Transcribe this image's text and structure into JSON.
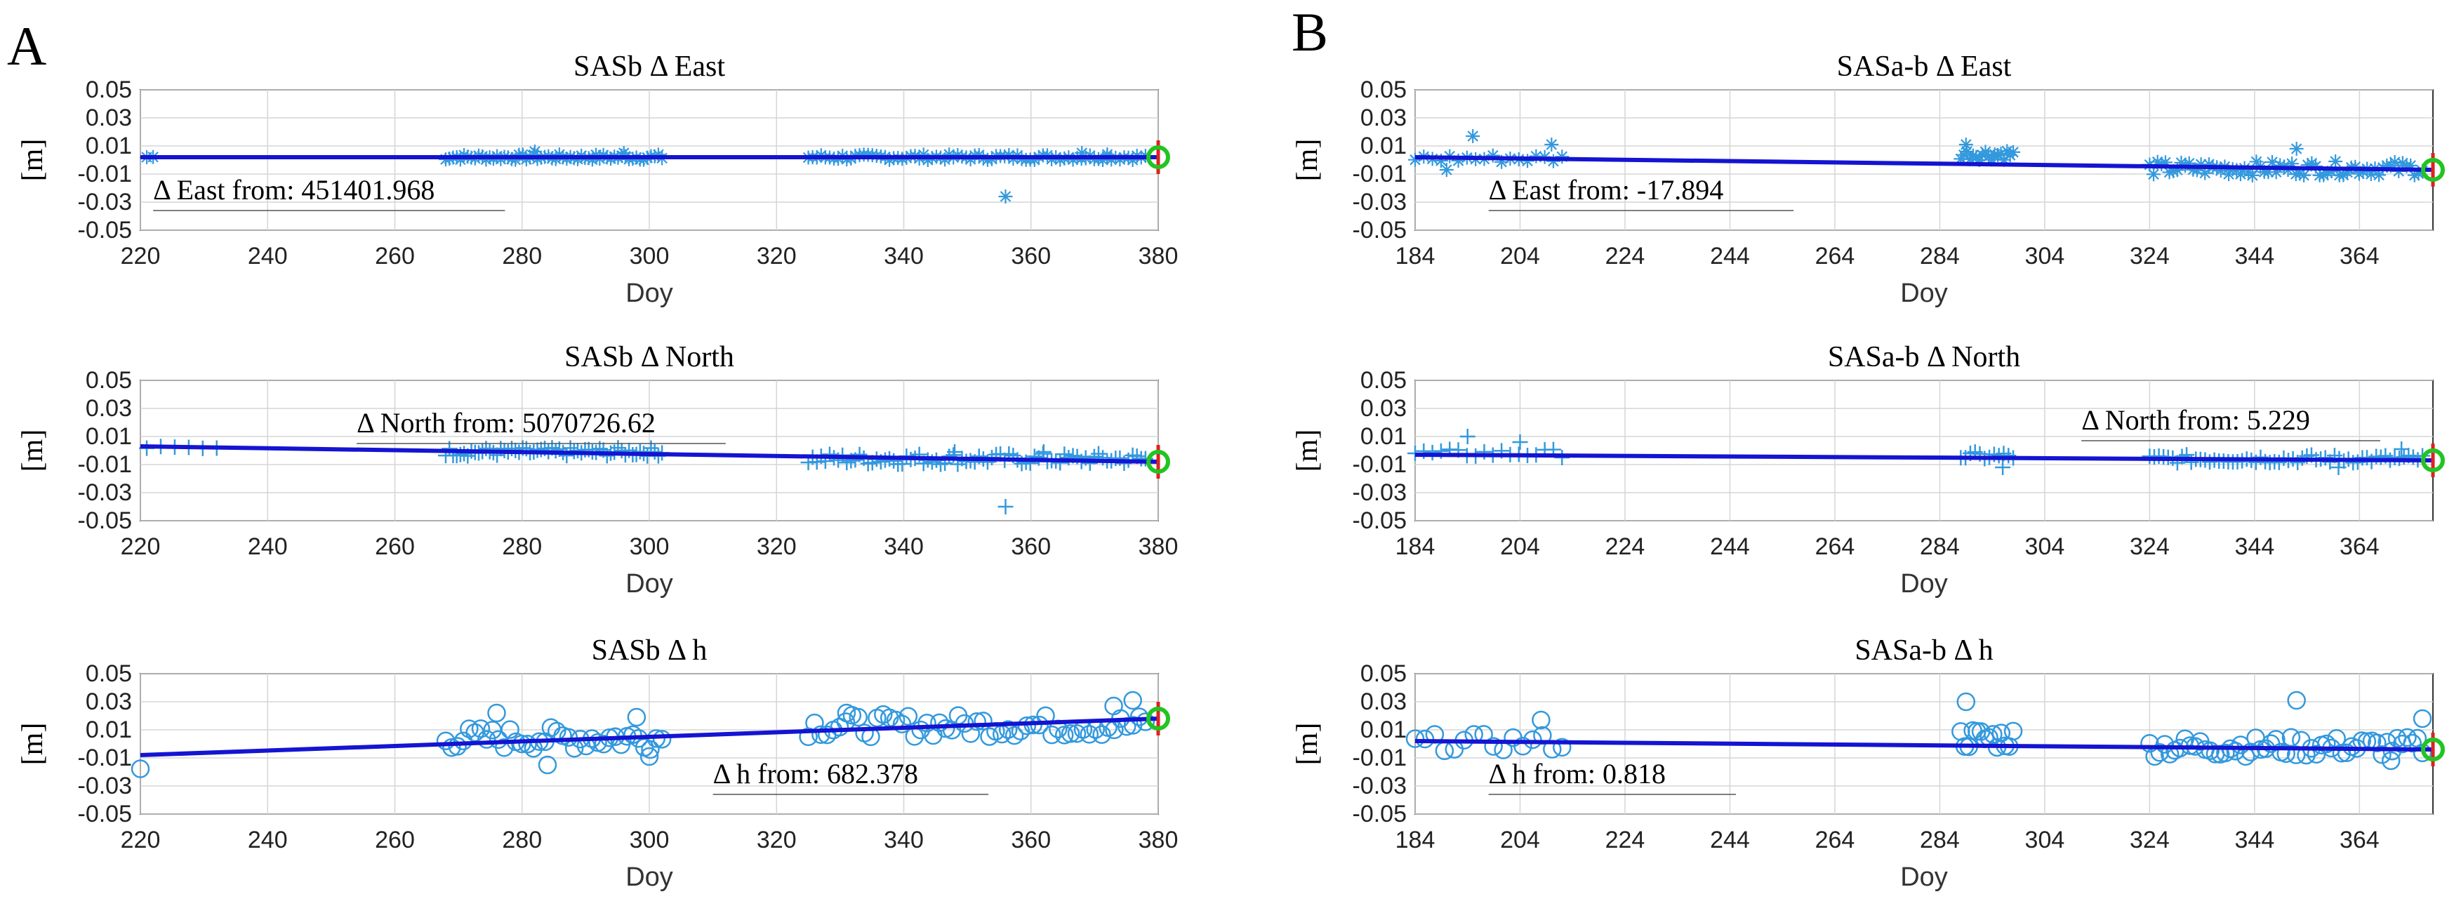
{
  "figure": {
    "panel_labels": [
      "A",
      "B"
    ],
    "colors": {
      "trend": "#1414d2",
      "marker": "#3399dd",
      "grid": "#d6d6d6",
      "axis": "#333333",
      "end_circle": "#22c422",
      "end_bar": "#e02020",
      "annotation_line": "#555555"
    }
  },
  "chart_data": [
    {
      "id": "A1",
      "panel": "A",
      "type": "scatter",
      "title": "SASb Δ East",
      "ylabel": "[m]",
      "xlabel": "Doy",
      "xlim": [
        220,
        380
      ],
      "ylim": [
        -0.05,
        0.05
      ],
      "xticks": [
        220,
        240,
        260,
        280,
        300,
        320,
        340,
        360,
        380
      ],
      "yticks": [
        0.05,
        0.03,
        0.01,
        -0.01,
        -0.03,
        -0.05
      ],
      "ytick_labels": [
        "0.05",
        "0.03",
        "0.01",
        "-0.01",
        "-0.03",
        "-0.05"
      ],
      "marker": "star",
      "grid": true,
      "annotation": "Δ East from: 451401.968",
      "annotation_at": [
        222,
        -0.021
      ],
      "trend": {
        "x": [
          220,
          380
        ],
        "y": [
          0.002,
          0.002
        ]
      },
      "end_point": {
        "x": 380,
        "y": 0.002
      },
      "clusters": [
        {
          "x0": 221,
          "x1": 222,
          "n": 2,
          "y": 0.002,
          "amp": 0.001
        },
        {
          "x0": 268,
          "x1": 302,
          "n": 60,
          "y": 0.002,
          "amp": 0.002
        },
        {
          "x0": 325,
          "x1": 378,
          "n": 80,
          "y": 0.002,
          "amp": 0.002
        }
      ],
      "outliers": [
        {
          "x": 356,
          "y": -0.026
        },
        {
          "x": 282,
          "y": 0.006
        },
        {
          "x": 296,
          "y": 0.005
        },
        {
          "x": 368,
          "y": 0.005
        },
        {
          "x": 372,
          "y": 0.004
        }
      ]
    },
    {
      "id": "A2",
      "panel": "A",
      "type": "scatter",
      "title": "SASb Δ North",
      "ylabel": "[m]",
      "xlabel": "Doy",
      "xlim": [
        220,
        380
      ],
      "ylim": [
        -0.05,
        0.05
      ],
      "xticks": [
        220,
        240,
        260,
        280,
        300,
        320,
        340,
        360,
        380
      ],
      "yticks": [
        0.05,
        0.03,
        0.01,
        -0.01,
        -0.03,
        -0.05
      ],
      "ytick_labels": [
        "0.05",
        "0.03",
        "0.01",
        "-0.01",
        "-0.03",
        "-0.05"
      ],
      "marker": "plus",
      "grid": true,
      "annotation": "Δ North from: 5070726.62",
      "annotation_at": [
        254,
        0.02
      ],
      "trend": {
        "x": [
          220,
          380
        ],
        "y": [
          0.003,
          -0.008
        ]
      },
      "end_point": {
        "x": 380,
        "y": -0.008
      },
      "clusters": [
        {
          "x0": 221,
          "x1": 232,
          "n": 6,
          "y": 0.002,
          "amp": 0.001
        },
        {
          "x0": 268,
          "x1": 302,
          "n": 60,
          "y": -0.001,
          "amp": 0.003
        },
        {
          "x0": 325,
          "x1": 378,
          "n": 80,
          "y": -0.006,
          "amp": 0.004
        }
      ],
      "outliers": [
        {
          "x": 356,
          "y": -0.04
        },
        {
          "x": 362,
          "y": -0.001
        },
        {
          "x": 348,
          "y": -0.001
        }
      ]
    },
    {
      "id": "A3",
      "panel": "A",
      "type": "scatter",
      "title": "SASb Δ h",
      "ylabel": "[m]",
      "xlabel": "Doy",
      "xlim": [
        220,
        380
      ],
      "ylim": [
        -0.05,
        0.05
      ],
      "xticks": [
        220,
        240,
        260,
        280,
        300,
        320,
        340,
        360,
        380
      ],
      "yticks": [
        0.05,
        0.03,
        0.01,
        -0.01,
        -0.03,
        -0.05
      ],
      "ytick_labels": [
        "0.05",
        "0.03",
        "0.01",
        "-0.01",
        "-0.03",
        "-0.05"
      ],
      "marker": "circle",
      "grid": true,
      "annotation": "Δ h from: 682.378",
      "annotation_at": [
        310,
        -0.021
      ],
      "trend": {
        "x": [
          220,
          380
        ],
        "y": [
          -0.008,
          0.018
        ]
      },
      "end_point": {
        "x": 380,
        "y": 0.018
      },
      "clusters": [
        {
          "x0": 220,
          "x1": 221,
          "n": 1,
          "y": -0.018,
          "amp": 0.001
        },
        {
          "x0": 268,
          "x1": 302,
          "n": 38,
          "y": 0.004,
          "amp": 0.008
        },
        {
          "x0": 325,
          "x1": 378,
          "n": 55,
          "y": 0.013,
          "amp": 0.008
        }
      ],
      "outliers": [
        {
          "x": 276,
          "y": 0.022
        },
        {
          "x": 298,
          "y": 0.019
        },
        {
          "x": 300,
          "y": -0.009
        },
        {
          "x": 284,
          "y": -0.015
        },
        {
          "x": 331,
          "y": 0.022
        },
        {
          "x": 376,
          "y": 0.031
        },
        {
          "x": 373,
          "y": 0.027
        }
      ]
    },
    {
      "id": "B1",
      "panel": "B",
      "type": "scatter",
      "title": "SASa-b Δ East",
      "ylabel": "[m]",
      "xlabel": "Doy",
      "xlim": [
        184,
        378
      ],
      "ylim": [
        -0.05,
        0.05
      ],
      "xticks": [
        184,
        204,
        224,
        244,
        264,
        284,
        304,
        324,
        344,
        364
      ],
      "yticks": [
        0.05,
        0.03,
        0.01,
        -0.01,
        -0.03,
        -0.05
      ],
      "ytick_labels": [
        "0.05",
        "0.03",
        "0.01",
        "-0.01",
        "-0.03",
        "-0.05"
      ],
      "marker": "star",
      "grid": true,
      "annotation": "Δ East from: -17.894",
      "annotation_at": [
        198,
        -0.021
      ],
      "trend": {
        "x": [
          184,
          378
        ],
        "y": [
          0.002,
          -0.007
        ]
      },
      "end_point": {
        "x": 378,
        "y": -0.007
      },
      "clusters": [
        {
          "x0": 184,
          "x1": 212,
          "n": 18,
          "y": 0.001,
          "amp": 0.003
        },
        {
          "x0": 288,
          "x1": 298,
          "n": 18,
          "y": 0.004,
          "amp": 0.004
        },
        {
          "x0": 324,
          "x1": 376,
          "n": 70,
          "y": -0.006,
          "amp": 0.005
        }
      ],
      "outliers": [
        {
          "x": 195,
          "y": 0.017
        },
        {
          "x": 210,
          "y": 0.011
        },
        {
          "x": 190,
          "y": -0.007
        },
        {
          "x": 289,
          "y": 0.011
        },
        {
          "x": 352,
          "y": 0.008
        }
      ]
    },
    {
      "id": "B2",
      "panel": "B",
      "type": "scatter",
      "title": "SASa-b Δ North",
      "ylabel": "[m]",
      "xlabel": "Doy",
      "xlim": [
        184,
        378
      ],
      "ylim": [
        -0.05,
        0.05
      ],
      "xticks": [
        184,
        204,
        224,
        244,
        264,
        284,
        304,
        324,
        344,
        364
      ],
      "yticks": [
        0.05,
        0.03,
        0.01,
        -0.01,
        -0.03,
        -0.05
      ],
      "ytick_labels": [
        "0.05",
        "0.03",
        "0.01",
        "-0.01",
        "-0.03",
        "-0.05"
      ],
      "marker": "plus",
      "grid": true,
      "annotation": "Δ North from: 5.229",
      "annotation_at": [
        311,
        0.022
      ],
      "trend": {
        "x": [
          184,
          378
        ],
        "y": [
          -0.003,
          -0.007
        ]
      },
      "end_point": {
        "x": 378,
        "y": -0.007
      },
      "clusters": [
        {
          "x0": 184,
          "x1": 212,
          "n": 18,
          "y": -0.002,
          "amp": 0.003
        },
        {
          "x0": 288,
          "x1": 298,
          "n": 12,
          "y": -0.004,
          "amp": 0.003
        },
        {
          "x0": 324,
          "x1": 376,
          "n": 60,
          "y": -0.006,
          "amp": 0.003
        }
      ],
      "outliers": [
        {
          "x": 194,
          "y": 0.01
        },
        {
          "x": 204,
          "y": 0.006
        },
        {
          "x": 296,
          "y": -0.012
        },
        {
          "x": 372,
          "y": 0.001
        },
        {
          "x": 360,
          "y": -0.012
        }
      ]
    },
    {
      "id": "B3",
      "panel": "B",
      "type": "scatter",
      "title": "SASa-b Δ h",
      "ylabel": "[m]",
      "xlabel": "Doy",
      "xlim": [
        184,
        378
      ],
      "ylim": [
        -0.05,
        0.05
      ],
      "xticks": [
        184,
        204,
        224,
        244,
        264,
        284,
        304,
        324,
        344,
        364
      ],
      "yticks": [
        0.05,
        0.03,
        0.01,
        -0.01,
        -0.03,
        -0.05
      ],
      "ytick_labels": [
        "0.05",
        "0.03",
        "0.01",
        "-0.01",
        "-0.03",
        "-0.05"
      ],
      "marker": "circle",
      "grid": true,
      "annotation": "Δ h from: 0.818",
      "annotation_at": [
        198,
        -0.021
      ],
      "trend": {
        "x": [
          184,
          378
        ],
        "y": [
          0.002,
          -0.004
        ]
      },
      "end_point": {
        "x": 378,
        "y": -0.004
      },
      "clusters": [
        {
          "x0": 184,
          "x1": 212,
          "n": 16,
          "y": 0.001,
          "amp": 0.006
        },
        {
          "x0": 288,
          "x1": 298,
          "n": 14,
          "y": 0.004,
          "amp": 0.008
        },
        {
          "x0": 324,
          "x1": 376,
          "n": 55,
          "y": -0.002,
          "amp": 0.007
        }
      ],
      "outliers": [
        {
          "x": 289,
          "y": 0.03
        },
        {
          "x": 352,
          "y": 0.031
        },
        {
          "x": 376,
          "y": 0.018
        },
        {
          "x": 208,
          "y": 0.017
        },
        {
          "x": 370,
          "y": -0.012
        }
      ]
    }
  ]
}
